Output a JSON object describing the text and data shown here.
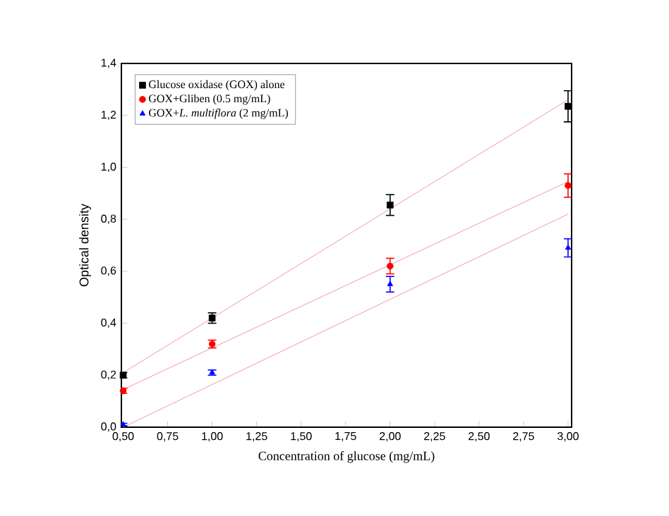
{
  "chart_data": {
    "type": "scatter",
    "xlabel": "Concentration of glucose (mg/mL)",
    "ylabel": "Optical density",
    "xlim": [
      0.49,
      3.02
    ],
    "ylim": [
      0,
      1.4
    ],
    "xticks": [
      {
        "value": 0.5,
        "label": "0,50"
      },
      {
        "value": 0.75,
        "label": "0,75"
      },
      {
        "value": 1.0,
        "label": "1,00"
      },
      {
        "value": 1.25,
        "label": "1,25"
      },
      {
        "value": 1.5,
        "label": "1,50"
      },
      {
        "value": 1.75,
        "label": "1,75"
      },
      {
        "value": 2.0,
        "label": "2,00"
      },
      {
        "value": 2.25,
        "label": "2,25"
      },
      {
        "value": 2.5,
        "label": "2,50"
      },
      {
        "value": 2.75,
        "label": "2,75"
      },
      {
        "value": 3.0,
        "label": "3,00"
      }
    ],
    "yticks": [
      {
        "value": 0,
        "label": "0,0"
      },
      {
        "value": 0.2,
        "label": "0,2"
      },
      {
        "value": 0.4,
        "label": "0,4"
      },
      {
        "value": 0.6,
        "label": "0,6"
      },
      {
        "value": 0.8,
        "label": "0,8"
      },
      {
        "value": 1.0,
        "label": "1,0"
      },
      {
        "value": 1.2,
        "label": "1,2"
      },
      {
        "value": 1.4,
        "label": "1,4"
      }
    ],
    "legend": "top left",
    "grid": false,
    "series": [
      {
        "type": "line",
        "color": "#f08080",
        "x": [
          0.5,
          3
        ],
        "values": [
          0.21,
          1.26
        ],
        "marker": "none"
      },
      {
        "type": "line",
        "color": "#f08080",
        "x": [
          0.5,
          3
        ],
        "values": [
          0.145,
          0.945
        ],
        "marker": "none"
      },
      {
        "type": "line",
        "color": "#f08080",
        "x": [
          0.5,
          3
        ],
        "values": [
          0.0,
          0.82
        ],
        "marker": "none"
      },
      {
        "name": "Glucose oxidase (GOX) alone",
        "color": "#000000",
        "marker": "square",
        "x": [
          0.5,
          1,
          2,
          3
        ],
        "values": [
          0.2,
          0.42,
          0.855,
          1.235
        ],
        "errors": [
          0.01,
          0.02,
          0.04,
          0.06
        ]
      },
      {
        "name": "GOX+Gliben (0.5 mg/mL)",
        "color": "#ff0000",
        "marker": "circle",
        "x": [
          0.5,
          1,
          2,
          3
        ],
        "values": [
          0.14,
          0.32,
          0.62,
          0.93
        ],
        "errors": [
          0.01,
          0.015,
          0.03,
          0.045
        ]
      },
      {
        "name": "GOX+*L. multiflora* (2 mg/mL)",
        "color": "#0000ff",
        "marker": "triangle",
        "x": [
          0.5,
          1,
          2,
          3
        ],
        "values": [
          0.01,
          0.21,
          0.55,
          0.69
        ],
        "errors": [
          0.005,
          0.01,
          0.03,
          0.035
        ]
      }
    ]
  }
}
